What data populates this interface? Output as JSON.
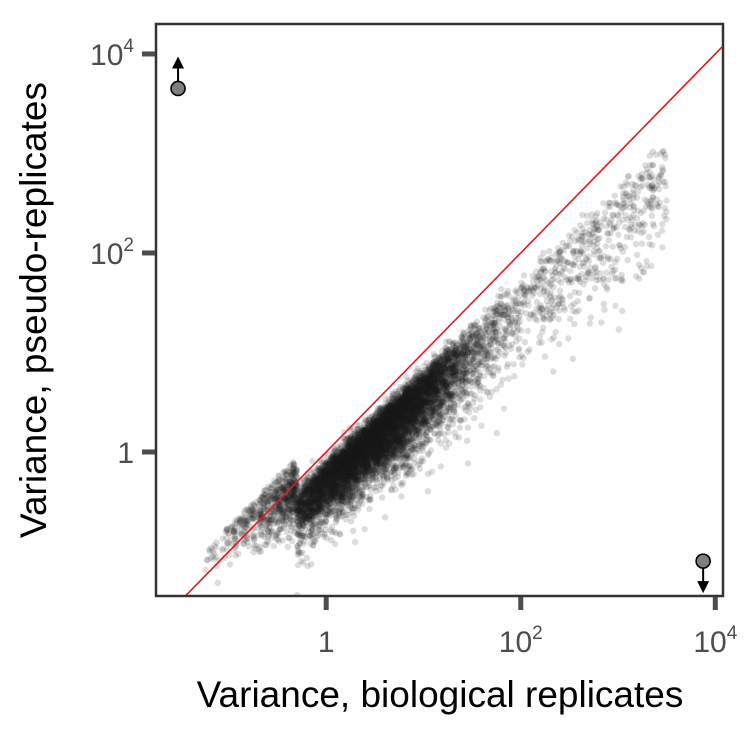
{
  "chart_data": {
    "type": "scatter",
    "xlabel": "Variance, biological replicates",
    "ylabel": "Variance, pseudo-replicates",
    "x_scale": "log10",
    "y_scale": "log10",
    "xlim": [
      0.0178,
      12000
    ],
    "ylim": [
      0.0357,
      20000
    ],
    "x_ticks": [
      {
        "value": 1,
        "base": "1",
        "exp": ""
      },
      {
        "value": 100,
        "base": "10",
        "exp": "2"
      },
      {
        "value": 10000,
        "base": "10",
        "exp": "4"
      }
    ],
    "y_ticks": [
      {
        "value": 1,
        "base": "1",
        "exp": ""
      },
      {
        "value": 100,
        "base": "10",
        "exp": "2"
      },
      {
        "value": 10000,
        "base": "10",
        "exp": "4"
      }
    ],
    "grid": false,
    "reference_line": {
      "type": "identity",
      "color": "#e41a1c"
    },
    "point_color": "#1a1a1a",
    "point_opacity": 0.15,
    "point_cloud_approx": {
      "n_points": 9000,
      "x_log10_range": [
        -1.2,
        3.6
      ],
      "description_units": "log10 of variance"
    },
    "offscale_markers": [
      {
        "x": 0.03,
        "y": 4500,
        "direction": "up"
      },
      {
        "x": 7500,
        "y": 0.08,
        "direction": "down"
      }
    ],
    "marker_color": "#7f7f7f"
  }
}
